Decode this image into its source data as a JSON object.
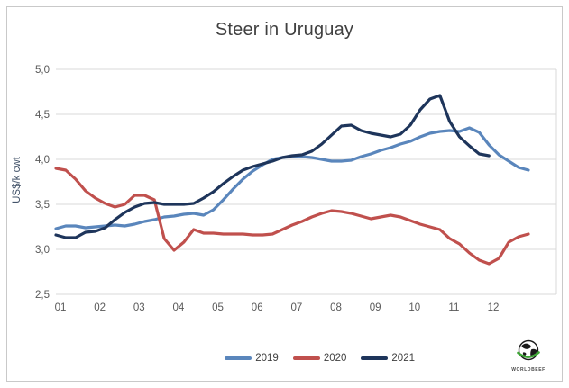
{
  "title": "Steer in Uruguay",
  "y_axis": {
    "label": "US$/k cwt",
    "tick_labels": [
      "5,0",
      "4,5",
      "4,0",
      "3,5",
      "3,0",
      "2,5"
    ],
    "tick_values": [
      5.0,
      4.5,
      4.0,
      3.5,
      3.0,
      2.5
    ]
  },
  "x_axis": {
    "tick_labels": [
      "01",
      "02",
      "03",
      "04",
      "05",
      "06",
      "07",
      "08",
      "09",
      "10",
      "11",
      "12"
    ]
  },
  "legend": [
    {
      "label": "2019",
      "color": "#5A86BC"
    },
    {
      "label": "2020",
      "color": "#C0504D"
    },
    {
      "label": "2021",
      "color": "#1E355B"
    }
  ],
  "logo": {
    "icon": "globe-icon",
    "text": "WORLDBEEF"
  },
  "colors": {
    "gridline": "#D9D9D9",
    "tick_text": "#595959",
    "title_text": "#404040",
    "axis_title_text": "#44546A"
  },
  "chart_data": {
    "type": "line",
    "title": "Steer in Uruguay",
    "ylabel": "US$/k cwt",
    "xlabel": "",
    "ylim": [
      2.5,
      5.0
    ],
    "grid": "horizontal",
    "legend_position": "bottom",
    "x_unit": "weeks (months 01-12 labeled on axis)",
    "categories_months": [
      "01",
      "02",
      "03",
      "04",
      "05",
      "06",
      "07",
      "08",
      "09",
      "10",
      "11",
      "12"
    ],
    "series": [
      {
        "name": "2019",
        "color": "#5A86BC",
        "values": [
          3.23,
          3.26,
          3.26,
          3.24,
          3.25,
          3.26,
          3.27,
          3.26,
          3.28,
          3.31,
          3.33,
          3.36,
          3.37,
          3.39,
          3.4,
          3.38,
          3.44,
          3.55,
          3.67,
          3.78,
          3.87,
          3.94,
          4.0,
          4.02,
          4.03,
          4.03,
          4.02,
          4.0,
          3.98,
          3.98,
          3.99,
          4.03,
          4.06,
          4.1,
          4.13,
          4.17,
          4.2,
          4.25,
          4.29,
          4.31,
          4.32,
          4.31,
          4.35,
          4.3,
          4.16,
          4.05,
          3.98,
          3.91,
          3.88
        ]
      },
      {
        "name": "2020",
        "color": "#C0504D",
        "values": [
          3.9,
          3.88,
          3.78,
          3.65,
          3.57,
          3.51,
          3.47,
          3.5,
          3.6,
          3.6,
          3.55,
          3.12,
          2.99,
          3.08,
          3.22,
          3.18,
          3.18,
          3.17,
          3.17,
          3.17,
          3.16,
          3.16,
          3.17,
          3.22,
          3.27,
          3.31,
          3.36,
          3.4,
          3.43,
          3.42,
          3.4,
          3.37,
          3.34,
          3.36,
          3.38,
          3.36,
          3.32,
          3.28,
          3.25,
          3.22,
          3.12,
          3.06,
          2.96,
          2.88,
          2.84,
          2.9,
          3.08,
          3.14,
          3.17
        ]
      },
      {
        "name": "2021",
        "color": "#1E355B",
        "values": [
          3.16,
          3.13,
          3.13,
          3.19,
          3.2,
          3.24,
          3.33,
          3.41,
          3.47,
          3.51,
          3.52,
          3.5,
          3.5,
          3.5,
          3.51,
          3.57,
          3.64,
          3.73,
          3.81,
          3.88,
          3.92,
          3.95,
          3.98,
          4.02,
          4.04,
          4.05,
          4.09,
          4.17,
          4.27,
          4.37,
          4.38,
          4.32,
          4.29,
          4.27,
          4.25,
          4.28,
          4.38,
          4.55,
          4.67,
          4.71,
          4.42,
          4.25,
          4.15,
          4.06,
          4.04
        ]
      }
    ]
  }
}
